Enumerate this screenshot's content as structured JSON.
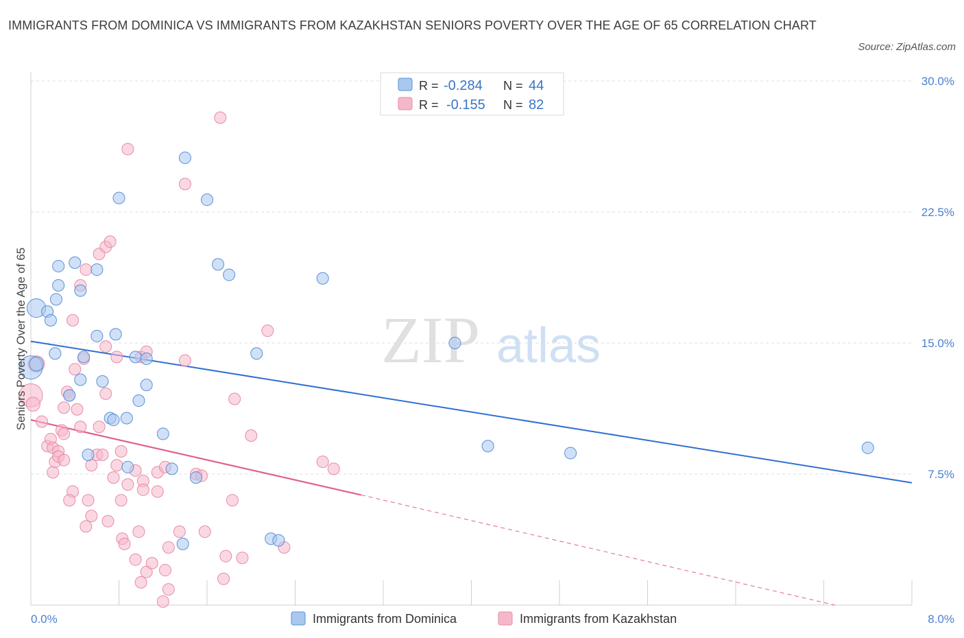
{
  "title": "IMMIGRANTS FROM DOMINICA VS IMMIGRANTS FROM KAZAKHSTAN SENIORS POVERTY OVER THE AGE OF 65 CORRELATION CHART",
  "source": "Source: ZipAtlas.com",
  "watermark": {
    "zip": "ZIP",
    "atlas": "atlas"
  },
  "colors": {
    "blue_fill": "#a9c8f0",
    "blue_stroke": "#5a8fd6",
    "blue_line": "#2e6fd1",
    "pink_fill": "#f5b8cb",
    "pink_stroke": "#e88aa8",
    "pink_line": "#e0608c",
    "tick_color": "#4a7fcf",
    "grid": "#dddddd"
  },
  "legend": {
    "r_label": "R =",
    "n_label": "N =",
    "rows": [
      {
        "r": "-0.284",
        "n": "44",
        "color": "blue"
      },
      {
        "r": "-0.155",
        "n": "82",
        "color": "pink"
      }
    ]
  },
  "bottom_legend": [
    "Immigrants from Dominica",
    "Immigrants from Kazakhstan"
  ],
  "chart_data": {
    "type": "scatter",
    "ylabel": "Seniors Poverty Over the Age of 65",
    "xlabel": "",
    "xlim": [
      0,
      8.0
    ],
    "ylim": [
      0,
      30.0
    ],
    "x_tick_labels": [
      "0.0%",
      "8.0%"
    ],
    "y_ticks": [
      7.5,
      15.0,
      22.5,
      30.0
    ],
    "y_tick_labels": [
      "7.5%",
      "15.0%",
      "22.5%",
      "30.0%"
    ],
    "grid": true,
    "series": [
      {
        "name": "Immigrants from Dominica",
        "color": "blue",
        "points": [
          [
            0.05,
            17.0,
            1.6
          ],
          [
            0.0,
            13.6,
            2.0
          ],
          [
            0.05,
            13.8,
            1.2
          ],
          [
            0.15,
            16.8,
            1
          ],
          [
            0.18,
            16.3,
            1
          ],
          [
            0.23,
            17.5,
            1
          ],
          [
            0.25,
            18.3,
            1
          ],
          [
            0.25,
            19.4,
            1
          ],
          [
            0.22,
            14.4,
            1
          ],
          [
            0.4,
            19.6,
            1
          ],
          [
            0.45,
            18.0,
            1
          ],
          [
            0.6,
            19.2,
            1
          ],
          [
            0.8,
            23.3,
            1
          ],
          [
            1.4,
            25.6,
            1
          ],
          [
            1.6,
            23.2,
            1
          ],
          [
            1.7,
            19.5,
            1
          ],
          [
            1.8,
            18.9,
            1
          ],
          [
            2.65,
            18.7,
            1
          ],
          [
            0.6,
            15.4,
            1
          ],
          [
            0.77,
            15.5,
            1
          ],
          [
            0.48,
            14.2,
            1
          ],
          [
            0.95,
            14.2,
            1
          ],
          [
            1.05,
            14.1,
            1
          ],
          [
            2.05,
            14.4,
            1
          ],
          [
            3.85,
            15.0,
            1
          ],
          [
            0.45,
            12.9,
            1
          ],
          [
            0.65,
            12.8,
            1
          ],
          [
            0.35,
            12.0,
            1
          ],
          [
            0.98,
            11.7,
            1
          ],
          [
            1.05,
            12.6,
            1
          ],
          [
            0.72,
            10.7,
            1
          ],
          [
            0.75,
            10.6,
            1
          ],
          [
            0.87,
            10.7,
            1
          ],
          [
            1.2,
            9.8,
            1
          ],
          [
            0.52,
            8.6,
            1
          ],
          [
            0.88,
            7.9,
            1
          ],
          [
            1.28,
            7.8,
            1
          ],
          [
            1.5,
            7.3,
            1
          ],
          [
            1.38,
            3.5,
            1
          ],
          [
            2.18,
            3.8,
            1
          ],
          [
            2.25,
            3.7,
            1
          ],
          [
            4.15,
            9.1,
            1
          ],
          [
            4.9,
            8.7,
            1
          ],
          [
            7.6,
            9.0,
            1
          ]
        ]
      },
      {
        "name": "Immigrants from Kazakhstan",
        "color": "pink",
        "points": [
          [
            0.0,
            12.0,
            2.0
          ],
          [
            0.05,
            13.8,
            1.4
          ],
          [
            0.02,
            11.5,
            1.2
          ],
          [
            0.1,
            10.5,
            1
          ],
          [
            0.15,
            9.1,
            1
          ],
          [
            0.18,
            9.5,
            1
          ],
          [
            0.2,
            9.0,
            1
          ],
          [
            0.2,
            7.6,
            1
          ],
          [
            0.22,
            8.2,
            1
          ],
          [
            0.25,
            8.8,
            1
          ],
          [
            0.25,
            8.5,
            1
          ],
          [
            0.3,
            8.3,
            1
          ],
          [
            0.28,
            10.0,
            1
          ],
          [
            0.3,
            9.8,
            1
          ],
          [
            0.3,
            11.3,
            1
          ],
          [
            0.33,
            12.2,
            1
          ],
          [
            0.35,
            12.0,
            1
          ],
          [
            0.4,
            13.5,
            1
          ],
          [
            0.42,
            11.2,
            1
          ],
          [
            0.45,
            10.2,
            1
          ],
          [
            0.48,
            14.1,
            1
          ],
          [
            0.38,
            16.3,
            1
          ],
          [
            0.45,
            18.3,
            1
          ],
          [
            0.5,
            19.2,
            1
          ],
          [
            0.62,
            20.1,
            1
          ],
          [
            0.68,
            20.5,
            1
          ],
          [
            0.72,
            20.8,
            1
          ],
          [
            0.88,
            26.1,
            1
          ],
          [
            1.4,
            24.1,
            1
          ],
          [
            1.72,
            27.9,
            1
          ],
          [
            0.68,
            14.8,
            1
          ],
          [
            0.78,
            14.2,
            1
          ],
          [
            1.0,
            14.2,
            1
          ],
          [
            1.05,
            14.5,
            1
          ],
          [
            1.4,
            14.0,
            1
          ],
          [
            2.15,
            15.7,
            1
          ],
          [
            0.68,
            12.1,
            1
          ],
          [
            1.85,
            11.8,
            1
          ],
          [
            0.62,
            10.2,
            1
          ],
          [
            2.0,
            9.7,
            1
          ],
          [
            0.6,
            8.6,
            1
          ],
          [
            0.65,
            8.6,
            1
          ],
          [
            0.55,
            8.0,
            1
          ],
          [
            0.78,
            8.0,
            1
          ],
          [
            0.82,
            8.8,
            1
          ],
          [
            0.95,
            7.7,
            1
          ],
          [
            1.15,
            7.6,
            1
          ],
          [
            1.22,
            7.9,
            1
          ],
          [
            1.5,
            7.5,
            1
          ],
          [
            1.55,
            7.4,
            1
          ],
          [
            2.65,
            8.2,
            1
          ],
          [
            2.75,
            7.8,
            1
          ],
          [
            0.38,
            6.5,
            1
          ],
          [
            0.35,
            6.0,
            1
          ],
          [
            0.52,
            6.0,
            1
          ],
          [
            0.82,
            6.0,
            1
          ],
          [
            0.88,
            6.9,
            1
          ],
          [
            1.02,
            7.1,
            1
          ],
          [
            1.02,
            6.6,
            1
          ],
          [
            1.15,
            6.5,
            1
          ],
          [
            1.83,
            6.0,
            1
          ],
          [
            0.55,
            5.1,
            1
          ],
          [
            0.5,
            4.5,
            1
          ],
          [
            0.7,
            4.8,
            1
          ],
          [
            0.83,
            3.8,
            1
          ],
          [
            0.85,
            3.5,
            1
          ],
          [
            0.98,
            4.2,
            1
          ],
          [
            1.25,
            3.3,
            1
          ],
          [
            1.35,
            4.2,
            1
          ],
          [
            1.58,
            4.2,
            1
          ],
          [
            0.95,
            2.6,
            1
          ],
          [
            1.05,
            1.9,
            1
          ],
          [
            1.1,
            2.4,
            1
          ],
          [
            1.22,
            2.0,
            1
          ],
          [
            1.0,
            1.3,
            1
          ],
          [
            1.25,
            0.9,
            1
          ],
          [
            1.2,
            0.2,
            1
          ],
          [
            1.75,
            1.5,
            1
          ],
          [
            1.77,
            2.8,
            1
          ],
          [
            2.3,
            3.3,
            1
          ],
          [
            1.92,
            2.7,
            1
          ],
          [
            0.75,
            7.3,
            1
          ]
        ]
      }
    ],
    "trend_lines": [
      {
        "series": "Immigrants from Dominica",
        "x": [
          0.0,
          8.0
        ],
        "y": [
          15.1,
          7.0
        ]
      },
      {
        "series": "Immigrants from Kazakhstan",
        "x": [
          0.0,
          3.0
        ],
        "y": [
          10.6,
          6.3
        ],
        "dashed_to": [
          7.3,
          0.0
        ]
      }
    ]
  }
}
